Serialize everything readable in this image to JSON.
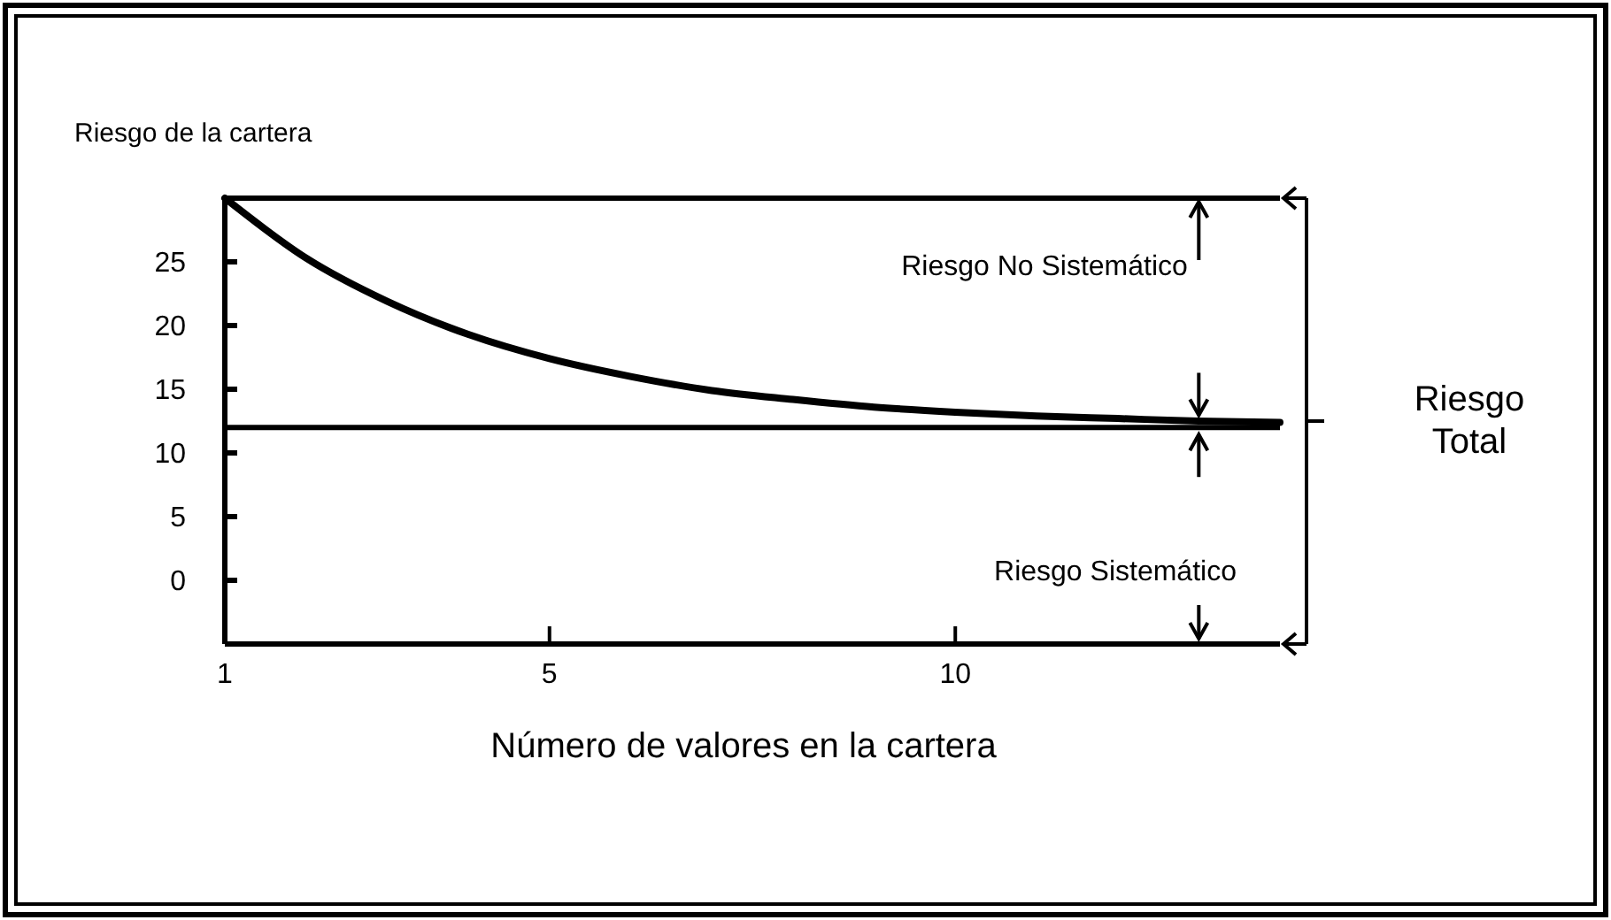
{
  "chart_data": {
    "type": "line",
    "xlabel": "Número de valores en la cartera",
    "x": [
      1,
      2,
      3,
      4,
      5,
      6,
      7,
      8,
      9,
      10,
      11,
      12,
      13,
      14
    ],
    "series": [
      {
        "color": "#000000",
        "values": [
          30,
          25.3,
          21.9,
          19.3,
          17.4,
          16,
          14.9,
          14.2,
          13.6,
          13.2,
          12.9,
          12.7,
          12.5,
          12.4
        ]
      }
    ],
    "xlim": [
      1,
      14
    ],
    "xticks": [
      1,
      5,
      10
    ],
    "ylim": [
      -5,
      30
    ],
    "yticks": [
      0,
      5,
      10,
      15,
      20,
      25
    ],
    "ref_lines": [
      {
        "axis": "y",
        "value": 30,
        "color": "#000000"
      },
      {
        "axis": "y",
        "value": 12,
        "color": "#000000"
      }
    ],
    "annotations": [
      "Riesgo No Sistemático",
      "Riesgo Sistemático",
      "Riesgo Total",
      "Riesgo de la cartera"
    ],
    "grid": false,
    "marker": "none",
    "line_style": "solid"
  }
}
